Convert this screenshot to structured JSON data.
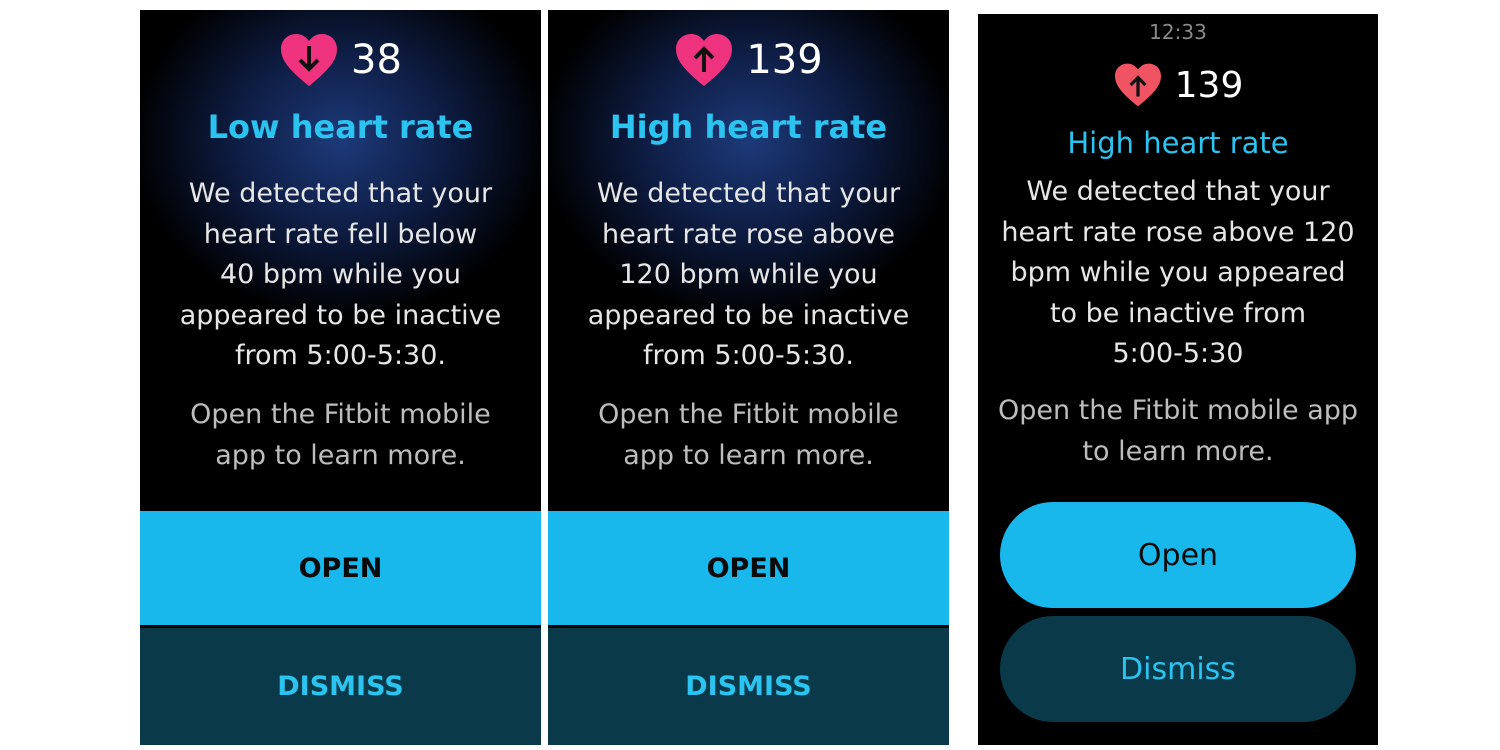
{
  "colors": {
    "accent": "#2bc3ef",
    "open_button": "#18b7ec",
    "dismiss_button": "#0a3a4a",
    "heart_low": "#f0337f",
    "heart_high_1": "#f0337f",
    "heart_high_2": "#f05463"
  },
  "screens": [
    {
      "icon": "heart-arrow-down-icon",
      "bpm": "38",
      "title": "Low heart rate",
      "body": "We detected that your\nheart rate fell below\n40 bpm while you\nappeared to be inactive\nfrom 5:00-5:30.",
      "hint": "Open the Fitbit mobile\napp to learn more.",
      "open": "OPEN",
      "dismiss": "DISMISS"
    },
    {
      "icon": "heart-arrow-up-icon",
      "bpm": "139",
      "title": "High heart rate",
      "body": "We detected that your\nheart rate rose above\n120 bpm while you\nappeared to be inactive\nfrom 5:00-5:30.",
      "hint": "Open the Fitbit mobile\napp to learn more.",
      "open": "OPEN",
      "dismiss": "DISMISS"
    },
    {
      "time": "12:33",
      "icon": "heart-arrow-up-icon",
      "bpm": "139",
      "title": "High heart rate",
      "body": "We detected that your\nheart rate rose above 120\nbpm while you appeared\nto be inactive from\n5:00-5:30",
      "hint": "Open the Fitbit mobile app\nto learn more.",
      "open": "Open",
      "dismiss": "Dismiss"
    }
  ]
}
